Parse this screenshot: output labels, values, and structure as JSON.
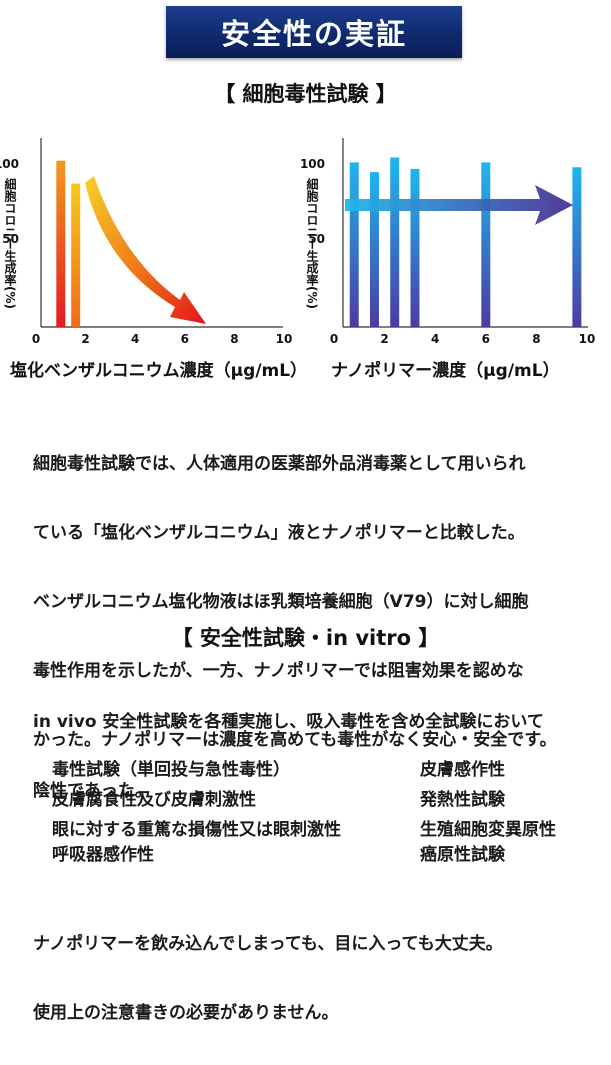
{
  "banner": {
    "title": "安全性の実証"
  },
  "section1": {
    "title": "【 細胞毒性試験 】"
  },
  "chart_data": [
    {
      "type": "bar",
      "ylabel": "細胞コロニー生成率(%)",
      "xlabel": "塩化ベンザルコニウム濃度（μg/mL）",
      "xlim": [
        0,
        10
      ],
      "ylim": [
        0,
        100
      ],
      "xticks": [
        "0",
        "2",
        "4",
        "6",
        "8",
        "10"
      ],
      "yticks": [
        "50",
        "100"
      ],
      "x": [
        1,
        1.6
      ],
      "values": [
        102,
        88
      ],
      "bar_colors": [
        "#e8141b",
        "#f4b400"
      ],
      "arrow": "decreasing trend toward x≈6.5 (red-orange gradient arrow)"
    },
    {
      "type": "bar",
      "ylabel": "細胞コロニー生成率(%)",
      "xlabel": "ナノポリマー濃度（μg/mL）",
      "xlim": [
        0,
        10
      ],
      "ylim": [
        0,
        100
      ],
      "xticks": [
        "0",
        "2",
        "4",
        "6",
        "8",
        "10"
      ],
      "yticks": [
        "50",
        "100"
      ],
      "x": [
        0.8,
        1.6,
        2.4,
        3.2,
        6,
        9.6
      ],
      "values": [
        101,
        95,
        104,
        97,
        101,
        98
      ],
      "bar_colors": [
        "#1fb4ee",
        "#4e3aa0"
      ],
      "arrow": "flat trend (blue-purple gradient arrow)"
    }
  ],
  "para1": {
    "lines": [
      "細胞毒性試験では、人体適用の医薬部外品消毒薬として用いられ",
      "ている「塩化ベンザルコニウム」液とナノポリマーと比較した。",
      "ベンザルコニウム塩化物液はほ乳類培養細胞（V79）に対し細胞",
      "毒性作用を示したが、一方、ナノポリマーでは阻害効果を認めな",
      "かった。ナノポリマーは濃度を高めても毒性がなく安心・安全です。"
    ]
  },
  "section2": {
    "title": "【 安全性試験・in vitro 】"
  },
  "para2": {
    "lines": [
      "in vivo 安全性試験を各種実施し、吸入毒性を含め全試験において",
      "陰性であった。"
    ]
  },
  "tests": {
    "left": [
      "毒性試験（単回投与急性毒性）",
      "皮膚腐食性及び皮膚刺激性",
      "眼に対する重篤な損傷性又は眼刺激性",
      "呼吸器感作性"
    ],
    "right": [
      "皮膚感作性",
      "発熱性試験",
      "生殖細胞変異原性",
      "癌原性試験"
    ]
  },
  "para3": {
    "lines": [
      "ナノポリマーを飲み込んでしまっても、目に入っても大丈夫。",
      "使用上の注意書きの必要がありません。"
    ]
  }
}
